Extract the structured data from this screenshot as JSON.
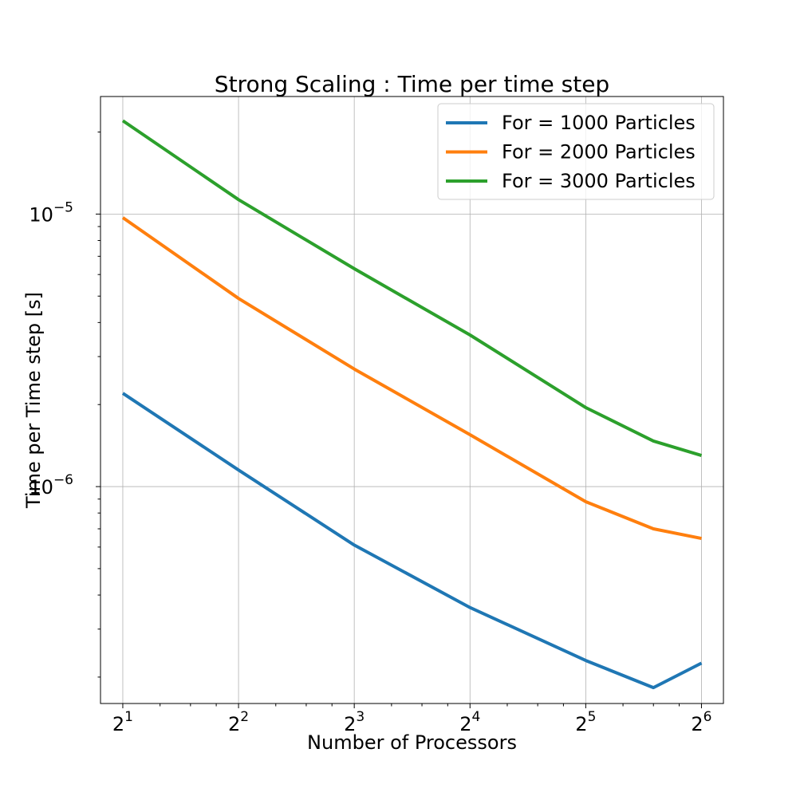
{
  "chart_data": {
    "type": "line",
    "title": "Strong Scaling : Time per time step",
    "xlabel": "Number of Processors",
    "ylabel": "Time per Time step [s]",
    "x_scale": "log2",
    "y_scale": "log10",
    "xlim": [
      1.75,
      73
    ],
    "ylim": [
      1.6e-07,
      2.7e-05
    ],
    "grid": true,
    "legend_position": "top-right",
    "x_ticks": [
      {
        "value": 2,
        "base": "2",
        "exp": "1"
      },
      {
        "value": 4,
        "base": "2",
        "exp": "2"
      },
      {
        "value": 8,
        "base": "2",
        "exp": "3"
      },
      {
        "value": 16,
        "base": "2",
        "exp": "4"
      },
      {
        "value": 32,
        "base": "2",
        "exp": "5"
      },
      {
        "value": 64,
        "base": "2",
        "exp": "6"
      }
    ],
    "y_ticks": [
      {
        "value": 1e-06,
        "base": "10",
        "exp": "−6"
      },
      {
        "value": 1e-05,
        "base": "10",
        "exp": "−5"
      }
    ],
    "x": [
      2,
      4,
      8,
      16,
      32,
      48,
      64
    ],
    "series": [
      {
        "name": "For = 1000 Particles",
        "color": "#1f77b4",
        "values": [
          2.2e-06,
          1.15e-06,
          6.1e-07,
          3.6e-07,
          2.3e-07,
          1.83e-07,
          2.25e-07
        ]
      },
      {
        "name": "For = 2000 Particles",
        "color": "#ff7f0e",
        "values": [
          9.7e-06,
          4.9e-06,
          2.7e-06,
          1.55e-06,
          8.8e-07,
          7e-07,
          6.45e-07
        ]
      },
      {
        "name": "For = 3000 Particles",
        "color": "#2ca02c",
        "values": [
          2.2e-05,
          1.13e-05,
          6.3e-06,
          3.6e-06,
          1.95e-06,
          1.47e-06,
          1.3e-06
        ]
      }
    ]
  }
}
